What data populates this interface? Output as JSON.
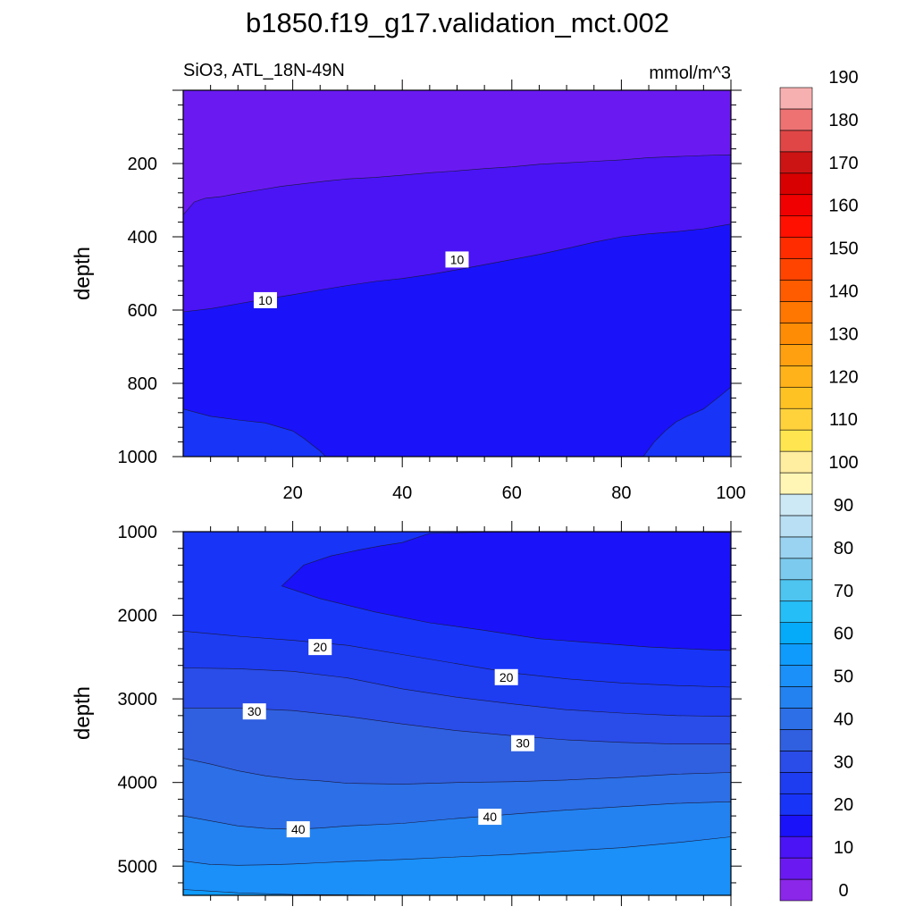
{
  "figure": {
    "title": "b1850.f19_g17.validation_mct.002",
    "subtitle_left": "SiO3, ATL_18N-49N",
    "subtitle_right": "mmol/m^3"
  },
  "chart_data": [
    {
      "type": "contour",
      "panel": "top",
      "xlabel": "",
      "ylabel": "depth",
      "xlim": [
        0,
        100
      ],
      "ylim": [
        1000,
        0
      ],
      "x_ticks": [
        "20",
        "40",
        "60",
        "80",
        "100"
      ],
      "y_ticks": [
        "200",
        "400",
        "600",
        "800",
        "1000"
      ],
      "contour_labels": [
        "10",
        "10"
      ],
      "bands": [
        {
          "level": 0,
          "color": "#6a1af1",
          "top_x": [
            0,
            100
          ],
          "top_y": [
            0,
            0
          ]
        },
        {
          "level": 5,
          "color": "#4a14f5",
          "top_x": [
            0,
            2,
            4,
            7,
            10,
            14,
            18,
            22,
            26,
            30,
            35,
            40,
            45,
            50,
            55,
            60,
            65,
            70,
            75,
            80,
            85,
            90,
            95,
            100
          ],
          "top_y": [
            340,
            305,
            295,
            290,
            282,
            272,
            262,
            255,
            248,
            242,
            238,
            232,
            225,
            220,
            214,
            209,
            202,
            198,
            194,
            190,
            184,
            181,
            178,
            176
          ]
        },
        {
          "level": 10,
          "color": "#1a12f9",
          "top_x": [
            0,
            5,
            10,
            15,
            20,
            25,
            30,
            35,
            40,
            45,
            50,
            55,
            60,
            65,
            70,
            75,
            80,
            85,
            90,
            95,
            100
          ],
          "top_y": [
            605,
            596,
            583,
            570,
            558,
            545,
            533,
            522,
            514,
            503,
            490,
            476,
            462,
            448,
            432,
            415,
            400,
            392,
            386,
            378,
            365
          ]
        },
        {
          "level": 15,
          "color": "#1834f7",
          "top_x": [
            0,
            5,
            10,
            15,
            20,
            22,
            25,
            26,
            84,
            86,
            88,
            90,
            92,
            95,
            98,
            100
          ],
          "top_y": [
            870,
            890,
            900,
            908,
            930,
            950,
            985,
            1000,
            1000,
            960,
            930,
            905,
            890,
            870,
            835,
            810
          ]
        }
      ]
    },
    {
      "type": "contour",
      "panel": "bottom",
      "xlabel": "",
      "ylabel": "depth",
      "xlim": [
        0,
        100
      ],
      "ylim": [
        5350,
        1000
      ],
      "y_ticks": [
        "1000",
        "2000",
        "3000",
        "4000",
        "5000"
      ],
      "contour_labels": [
        "20",
        "20",
        "30",
        "30",
        "40",
        "40"
      ],
      "bands": [
        {
          "level": 15,
          "color": "#1834f7",
          "top_x": [
            0,
            100
          ],
          "top_y": [
            1000,
            1000
          ]
        },
        {
          "level": 10,
          "color": "#1a12f9",
          "top_x": [
            18,
            22,
            27,
            32,
            36,
            40,
            45,
            55,
            65,
            75,
            85,
            95,
            100
          ],
          "top_y": [
            1650,
            1400,
            1290,
            1220,
            1170,
            1130,
            1020,
            1005,
            1002,
            1000,
            1003,
            1005,
            1010
          ],
          "bottom_x": [
            18,
            25,
            35,
            45,
            55,
            65,
            75,
            85,
            95,
            100
          ],
          "bottom_y": [
            1650,
            1800,
            1960,
            2090,
            2180,
            2280,
            2330,
            2380,
            2410,
            2420
          ]
        },
        {
          "level": 20,
          "color": "#1e3cf0",
          "top_x": [
            0,
            10,
            20,
            30,
            40,
            50,
            60,
            70,
            80,
            90,
            100
          ],
          "top_y": [
            2190,
            2250,
            2300,
            2360,
            2470,
            2580,
            2690,
            2760,
            2810,
            2840,
            2860
          ]
        },
        {
          "level": 25,
          "color": "#2a4ce8",
          "top_x": [
            0,
            10,
            20,
            30,
            40,
            50,
            60,
            70,
            80,
            90,
            100
          ],
          "top_y": [
            2630,
            2640,
            2670,
            2750,
            2880,
            2980,
            3060,
            3130,
            3170,
            3200,
            3210
          ]
        },
        {
          "level": 30,
          "color": "#3060e0",
          "top_x": [
            0,
            10,
            20,
            30,
            40,
            50,
            60,
            70,
            80,
            90,
            100
          ],
          "top_y": [
            3110,
            3110,
            3140,
            3210,
            3300,
            3380,
            3440,
            3490,
            3520,
            3540,
            3540
          ]
        },
        {
          "level": 35,
          "color": "#2c6fe6",
          "top_x": [
            0,
            5,
            10,
            15,
            20,
            25,
            30,
            40,
            50,
            60,
            70,
            80,
            90,
            100
          ],
          "top_y": [
            3710,
            3780,
            3860,
            3920,
            3960,
            3980,
            4010,
            4020,
            4000,
            3990,
            3970,
            3940,
            3900,
            3880
          ]
        },
        {
          "level": 40,
          "color": "#2382f0",
          "top_x": [
            0,
            5,
            10,
            15,
            20,
            25,
            30,
            40,
            50,
            60,
            70,
            80,
            90,
            100
          ],
          "top_y": [
            4400,
            4460,
            4520,
            4550,
            4560,
            4545,
            4520,
            4490,
            4430,
            4380,
            4330,
            4290,
            4250,
            4230
          ]
        },
        {
          "level": 45,
          "color": "#1a90f8",
          "top_x": [
            0,
            5,
            10,
            15,
            20,
            25,
            30,
            40,
            50,
            60,
            70,
            80,
            90,
            100
          ],
          "top_y": [
            4940,
            4980,
            4990,
            4985,
            4975,
            4960,
            4945,
            4920,
            4890,
            4860,
            4820,
            4780,
            4720,
            4650
          ]
        },
        {
          "level": 50,
          "color": "#0f9bfb",
          "top_x": [
            0,
            5,
            10,
            20,
            30,
            40,
            100
          ],
          "top_y": [
            5280,
            5300,
            5320,
            5340,
            5345,
            5350,
            5350
          ]
        }
      ]
    }
  ],
  "colorbar": {
    "colors": [
      "#8a27e8",
      "#6a1af1",
      "#4a14f5",
      "#1a12f9",
      "#1834f7",
      "#1e3cf0",
      "#2a4ce8",
      "#3060e0",
      "#2c6fe6",
      "#2382f0",
      "#1a90f8",
      "#0f9bfb",
      "#05aaf9",
      "#25bef7",
      "#4ec4f0",
      "#7ccaee",
      "#9ad3f1",
      "#b8dff3",
      "#cde9f5",
      "#fff6b5",
      "#ffeda0",
      "#ffe650",
      "#ffd23c",
      "#ffc223",
      "#ffb219",
      "#ffa010",
      "#ff8c05",
      "#ff7600",
      "#ff5c00",
      "#ff4400",
      "#ff2c00",
      "#ff1000",
      "#f00000",
      "#d80000",
      "#cc1414",
      "#e04646",
      "#ee7272",
      "#f7b0b0"
    ],
    "labels": [
      "0",
      "10",
      "20",
      "30",
      "40",
      "50",
      "60",
      "70",
      "80",
      "90",
      "100",
      "110",
      "120",
      "130",
      "140",
      "150",
      "160",
      "170",
      "180",
      "190"
    ]
  }
}
